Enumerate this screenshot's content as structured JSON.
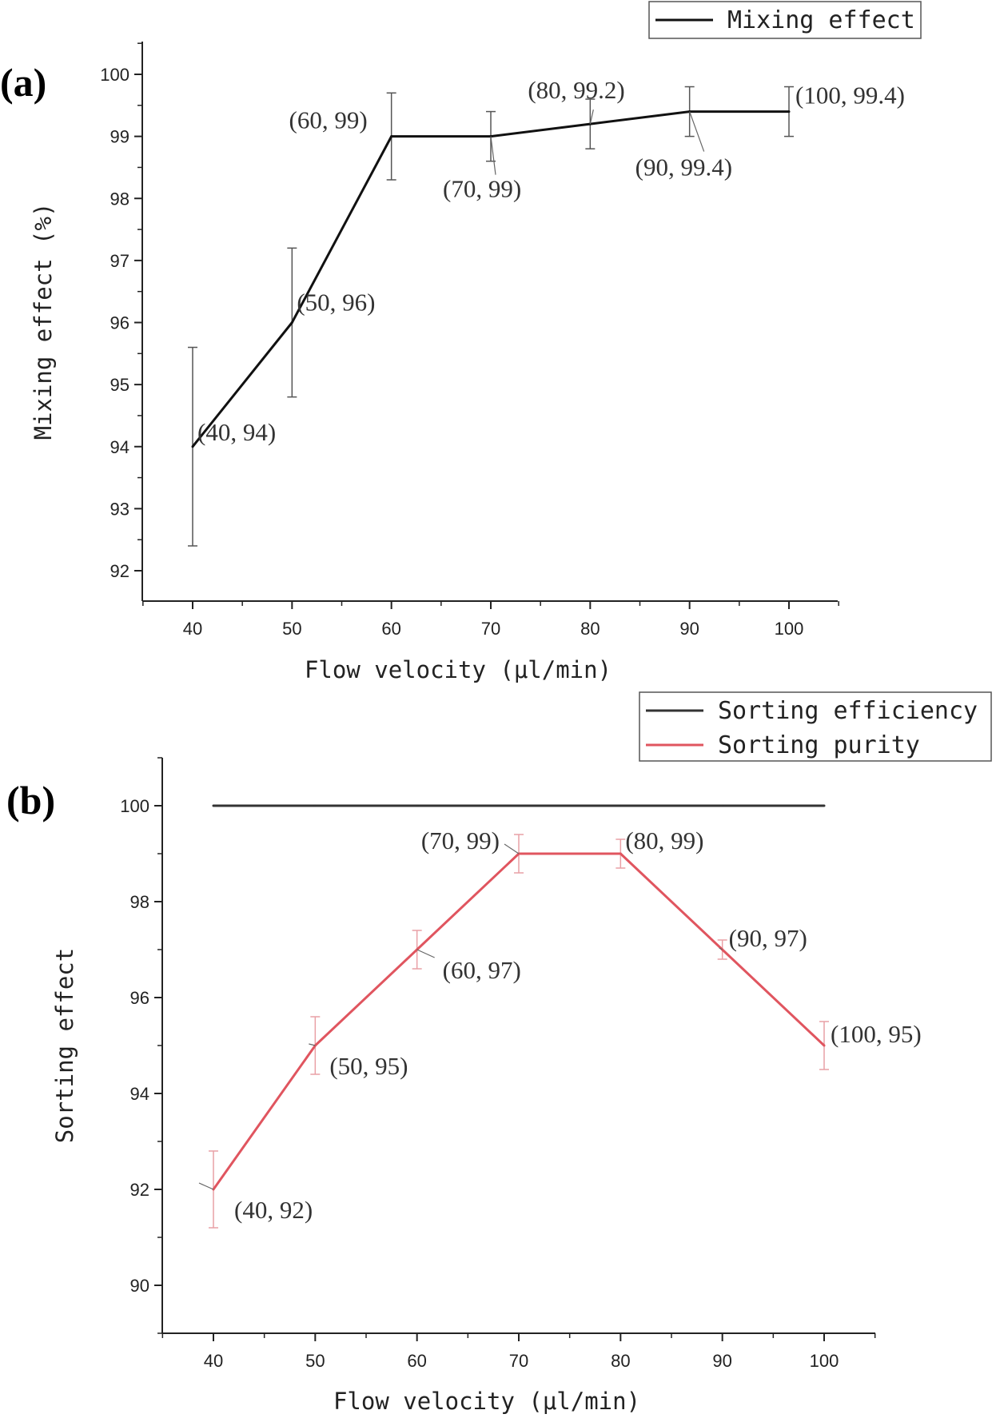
{
  "chart_data": [
    {
      "type": "line",
      "panel_label": "(a)",
      "xlabel": "Flow velocity (μl/min)",
      "ylabel": "Mixing effect (%)",
      "xlim": [
        35,
        105
      ],
      "ylim": [
        91.5,
        100.5
      ],
      "x_ticks": [
        40,
        50,
        60,
        70,
        80,
        90,
        100
      ],
      "y_ticks": [
        92,
        93,
        94,
        95,
        96,
        97,
        98,
        99,
        100
      ],
      "grid": false,
      "legend_position": "top-right",
      "series": [
        {
          "name": "Mixing effect",
          "color": "#111111",
          "x": [
            40,
            50,
            60,
            70,
            80,
            90,
            100
          ],
          "y": [
            94,
            96,
            99,
            99,
            99.2,
            99.4,
            99.4
          ],
          "error": [
            1.6,
            1.2,
            0.7,
            0.4,
            0.4,
            0.4,
            0.4
          ]
        }
      ],
      "annotations": [
        {
          "text": "(40, 94)",
          "x": 40,
          "y": 94
        },
        {
          "text": "(50, 96)",
          "x": 50,
          "y": 96
        },
        {
          "text": "(60, 99)",
          "x": 60,
          "y": 99
        },
        {
          "text": "(70, 99)",
          "x": 70,
          "y": 99
        },
        {
          "text": "(80, 99.2)",
          "x": 80,
          "y": 99.2
        },
        {
          "text": "(90, 99.4)",
          "x": 90,
          "y": 99.4
        },
        {
          "text": "(100, 99.4)",
          "x": 100,
          "y": 99.4
        }
      ]
    },
    {
      "type": "line",
      "panel_label": "(b)",
      "xlabel": "Flow velocity (μl/min)",
      "ylabel": "Sorting effect",
      "xlim": [
        35,
        105
      ],
      "ylim": [
        89,
        101
      ],
      "x_ticks": [
        40,
        50,
        60,
        70,
        80,
        90,
        100
      ],
      "y_ticks": [
        90,
        92,
        94,
        96,
        98,
        100
      ],
      "grid": false,
      "legend_position": "top-right",
      "series": [
        {
          "name": "Sorting efficiency",
          "color": "#333333",
          "x": [
            40,
            50,
            60,
            70,
            80,
            90,
            100
          ],
          "y": [
            100,
            100,
            100,
            100,
            100,
            100,
            100
          ],
          "error": [
            0,
            0,
            0,
            0,
            0,
            0,
            0
          ]
        },
        {
          "name": "Sorting purity",
          "color": "#e0555f",
          "x": [
            40,
            50,
            60,
            70,
            80,
            90,
            100
          ],
          "y": [
            92,
            95,
            97,
            99,
            99,
            97,
            95
          ],
          "error": [
            0.8,
            0.6,
            0.4,
            0.4,
            0.3,
            0.2,
            0.5
          ]
        }
      ],
      "annotations": [
        {
          "text": "(40, 92)",
          "x": 40,
          "y": 92
        },
        {
          "text": "(50, 95)",
          "x": 50,
          "y": 95
        },
        {
          "text": "(60, 97)",
          "x": 60,
          "y": 97
        },
        {
          "text": "(70, 99)",
          "x": 70,
          "y": 99
        },
        {
          "text": "(80, 99)",
          "x": 80,
          "y": 99
        },
        {
          "text": "(90, 97)",
          "x": 90,
          "y": 97
        },
        {
          "text": "(100, 95)",
          "x": 100,
          "y": 95
        }
      ]
    }
  ]
}
